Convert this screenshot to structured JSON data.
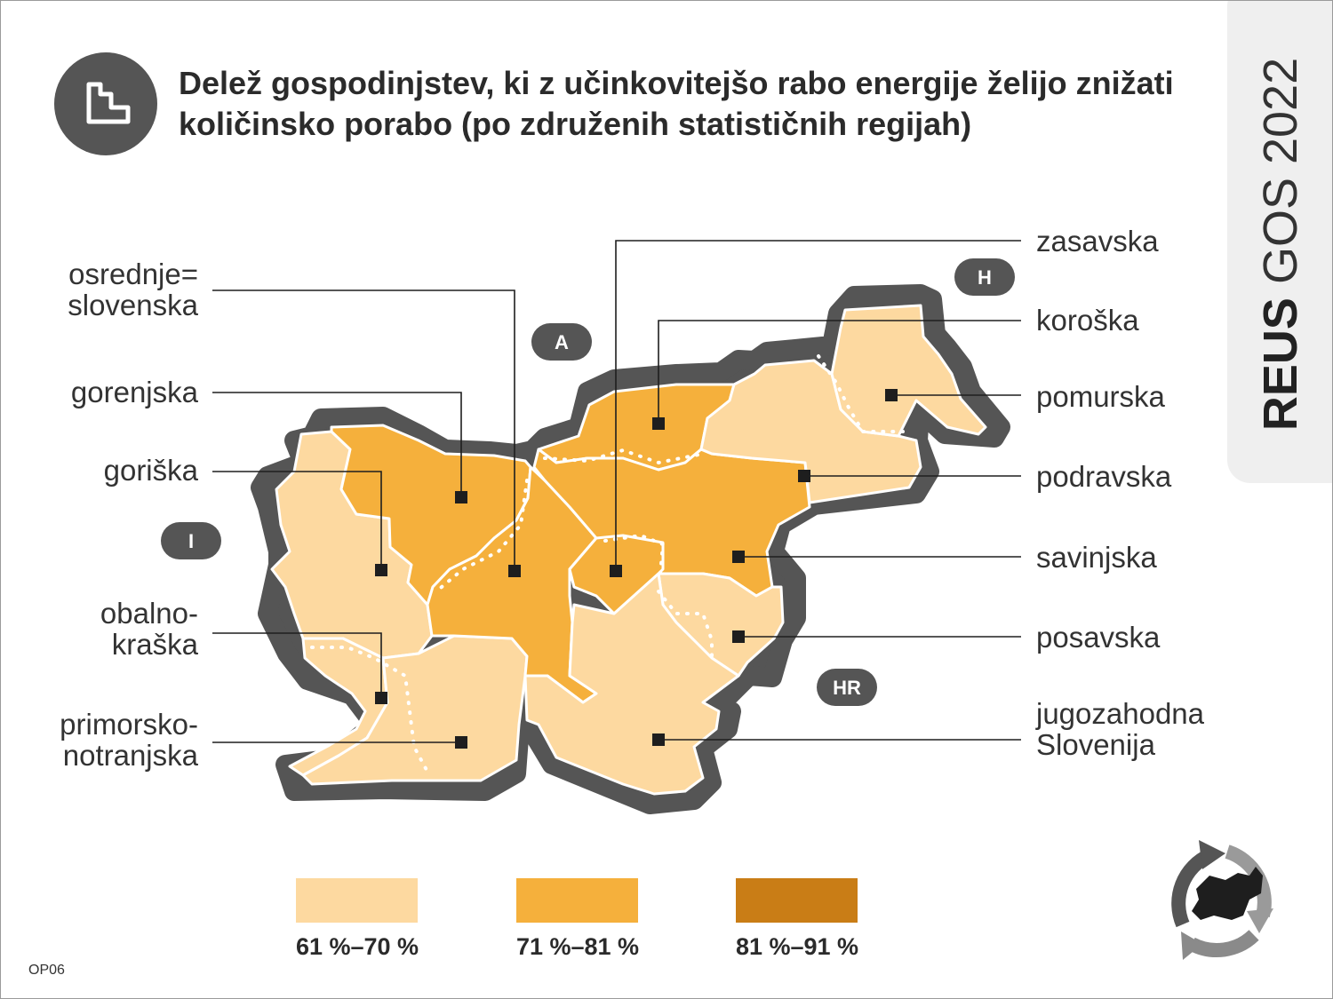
{
  "title": "Delež gospodinjstev, ki z učinkovitejšo rabo energije želijo znižati količinsko porabo (po združenih statističnih regijah)",
  "badge": {
    "strong": "REUS",
    "light": "GOS 2022"
  },
  "figure_code": "OP06",
  "icons": {
    "title": "stairs-chart-icon",
    "logo": "recycle-slovenia-logo-icon"
  },
  "colors": {
    "class_1": "#fdd9a0",
    "class_2": "#f5b03c",
    "class_3": "#c97d16",
    "border": "#555555"
  },
  "neighbours": {
    "austria": "A",
    "hungary": "H",
    "italy": "I",
    "croatia": "HR"
  },
  "regions": {
    "osrednjeslovenska": {
      "label_1": "osrednje=",
      "label_2": "slovenska",
      "class": "71 %–81 %"
    },
    "gorenjska": {
      "label": "gorenjska",
      "class": "71 %–81 %"
    },
    "goriska": {
      "label": "goriška",
      "class": "61 %–70 %"
    },
    "obalnokraska": {
      "label_1": "obalno-",
      "label_2": "kraška",
      "class": "61 %–70 %"
    },
    "primorskonotranjska": {
      "label_1": "primorsko-",
      "label_2": "notranjska",
      "class": "61 %–70 %"
    },
    "zasavska": {
      "label": "zasavska",
      "class": "71 %–81 %"
    },
    "koroska": {
      "label": "koroška",
      "class": "71 %–81 %"
    },
    "pomurska": {
      "label": "pomurska",
      "class": "61 %–70 %"
    },
    "podravska": {
      "label": "podravska",
      "class": "61 %–70 %"
    },
    "savinjska": {
      "label": "savinjska",
      "class": "71 %–81 %"
    },
    "posavska": {
      "label": "posavska",
      "class": "61 %–70 %"
    },
    "jugozahodna": {
      "label_1": "jugozahodna",
      "label_2": "Slovenija",
      "class": "61 %–70 %"
    }
  },
  "legend": [
    {
      "label": "61 %–70 %",
      "color": "#fdd9a0"
    },
    {
      "label": "71 %–81 %",
      "color": "#f5b03c"
    },
    {
      "label": "81 %–91 %",
      "color": "#c97d16"
    }
  ]
}
